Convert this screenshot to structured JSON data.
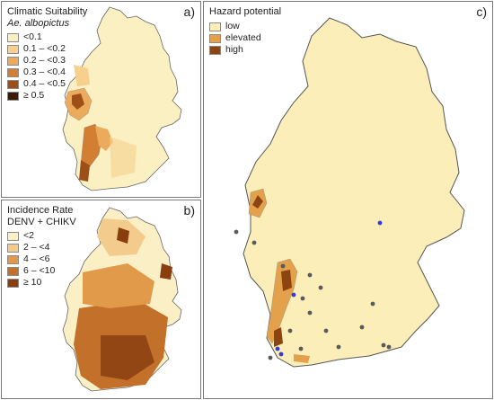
{
  "panels": {
    "a": {
      "letter": "a)",
      "title": "Climatic Suitability",
      "subtitle": "Ae. albopictus",
      "legend": [
        {
          "label": "<0.1",
          "color": "#fbf0c2"
        },
        {
          "label": "0.1 – <0.2",
          "color": "#f7d08e"
        },
        {
          "label": "0.2 – <0.3",
          "color": "#ebaa5c"
        },
        {
          "label": "0.3 – <0.4",
          "color": "#d27e33"
        },
        {
          "label": "0.4 – <0.5",
          "color": "#9c4f17"
        },
        {
          "label": "≥ 0.5",
          "color": "#3d1a05"
        }
      ]
    },
    "b": {
      "letter": "b)",
      "title": "Incidence Rate",
      "subtitle": "DENV + CHIKV",
      "legend": [
        {
          "label": "<2",
          "color": "#fbefc6"
        },
        {
          "label": "2 – <4",
          "color": "#f3cb8c"
        },
        {
          "label": "4 – <6",
          "color": "#e1994a"
        },
        {
          "label": "6 – <10",
          "color": "#c3702a"
        },
        {
          "label": "≥ 10",
          "color": "#8a3e10"
        }
      ]
    },
    "c": {
      "letter": "c)",
      "title": "Hazard potential",
      "legend": [
        {
          "label": "low",
          "color": "#fbeeb8"
        },
        {
          "label": "elevated",
          "color": "#e4a14c"
        },
        {
          "label": "high",
          "color": "#8c4412"
        }
      ]
    }
  },
  "colors": {
    "map_base": "#fbefc0",
    "boundary": "#8a8a8a",
    "state_boundary": "#555555",
    "marker_grey": "#5a5a5a",
    "marker_blue": "#3a3ad8"
  }
}
